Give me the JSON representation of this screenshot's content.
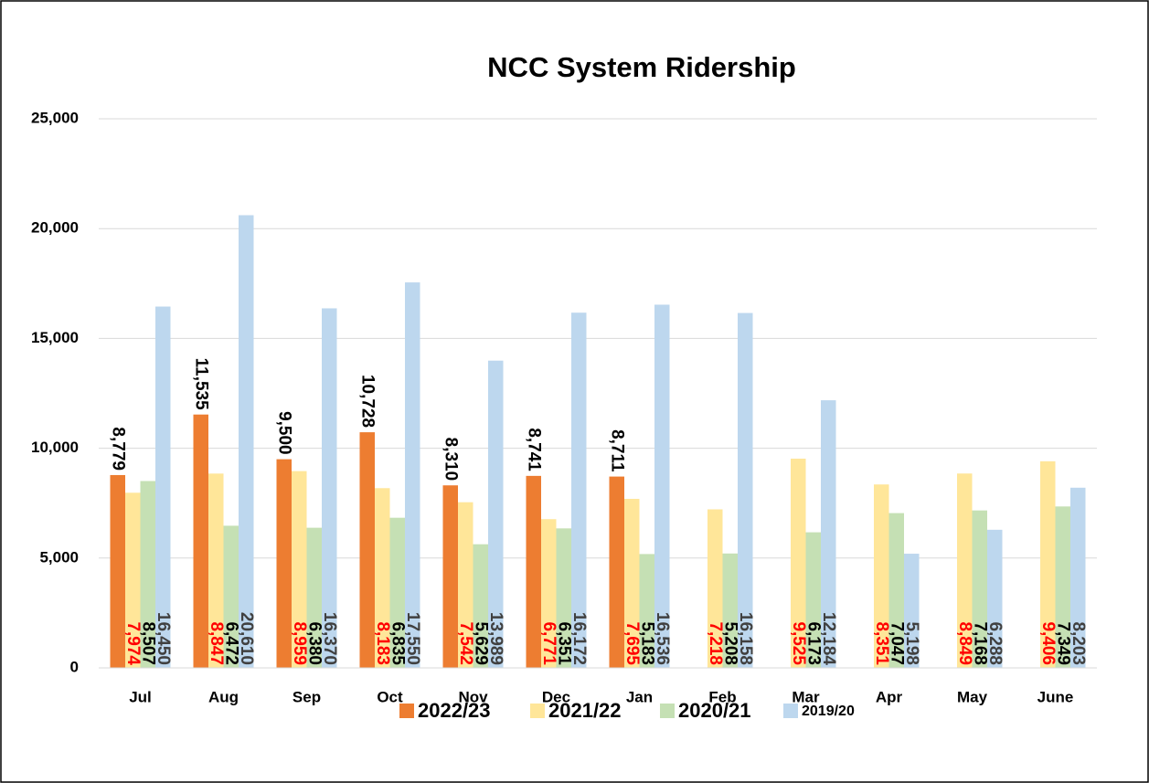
{
  "chart_data": {
    "type": "bar",
    "title": "NCC System Ridership",
    "categories": [
      "Jul",
      "Aug",
      "Sep",
      "Oct",
      "Nov",
      "Dec",
      "Jan",
      "Feb",
      "Mar",
      "Apr",
      "May",
      "June"
    ],
    "series": [
      {
        "name": "2022/23",
        "color": "#ed7d31",
        "label_color": "#000000",
        "values": [
          8779,
          11535,
          9500,
          10728,
          8310,
          8741,
          8711,
          null,
          null,
          null,
          null,
          null
        ],
        "value_labels": [
          "8,779",
          "11,535",
          "9,500",
          "10,728",
          "8,310",
          "8,741",
          "8,711",
          null,
          null,
          null,
          null,
          null
        ]
      },
      {
        "name": "2021/22",
        "color": "#ffe699",
        "label_color": "#ff0000",
        "values": [
          7974,
          8847,
          8959,
          8183,
          7542,
          6771,
          7695,
          7218,
          9525,
          8351,
          8849,
          9406
        ],
        "value_labels": [
          "7,974",
          "8,847",
          "8,959",
          "8,183",
          "7,542",
          "6,771",
          "7,695",
          "7,218",
          "9,525",
          "8,351",
          "8,849",
          "9,406"
        ]
      },
      {
        "name": "2020/21",
        "color": "#c5e0b4",
        "label_color": "#000000",
        "values": [
          8507,
          6472,
          6380,
          6835,
          5629,
          6351,
          5183,
          5208,
          6173,
          7047,
          7168,
          7349
        ],
        "value_labels": [
          "8,507",
          "6,472",
          "6,380",
          "6,835",
          "5,629",
          "6,351",
          "5,183",
          "5,208",
          "6,173",
          "7,047",
          "7,168",
          "7,349"
        ]
      },
      {
        "name": "2019/20",
        "color": "#bdd7ee",
        "label_color": "#404040",
        "values": [
          16450,
          20610,
          16370,
          17550,
          13989,
          16172,
          16536,
          16158,
          12184,
          5198,
          6288,
          8203
        ],
        "value_labels": [
          "16,450",
          "20,610",
          "16,370",
          "17,550",
          "13,989",
          "16,172",
          "16,536",
          "16,158",
          "12,184",
          "5,198",
          "6,288",
          "8,203"
        ]
      }
    ],
    "ylim": [
      0,
      25000
    ],
    "yticks": [
      0,
      {
        "value": 5000,
        "label": "5,000"
      },
      {
        "value": 10000,
        "label": "10,000"
      },
      {
        "value": 15000,
        "label": "15,000"
      },
      {
        "value": 20000,
        "label": "20,000"
      },
      {
        "value": 25000,
        "label": "25,000"
      }
    ],
    "grid": true,
    "legend": "bottom"
  }
}
